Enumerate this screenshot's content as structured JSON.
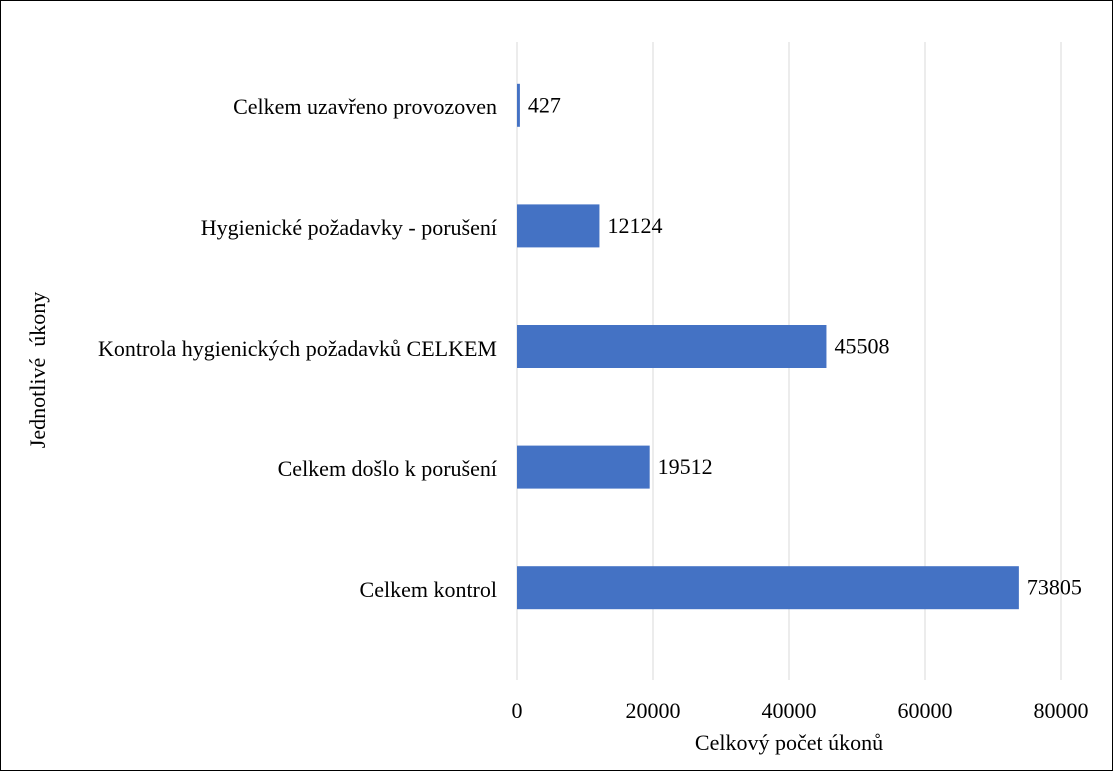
{
  "chart_data": {
    "type": "hbar",
    "categories": [
      "Celkem kontrol",
      "Celkem došlo k porušení",
      "Kontrola hygienických požadavků CELKEM",
      "Hygienické požadavky - porušení",
      "Celkem uzavřeno provozoven"
    ],
    "values": [
      73805,
      19512,
      45508,
      12124,
      427
    ],
    "color": "#4472c4",
    "xlim": [
      0,
      80000
    ],
    "xticks": [
      0,
      20000,
      40000,
      60000,
      80000
    ],
    "grid": true,
    "x_label": "Celkový počet úkonů",
    "y_label": "Jednotlivé  úkony"
  }
}
